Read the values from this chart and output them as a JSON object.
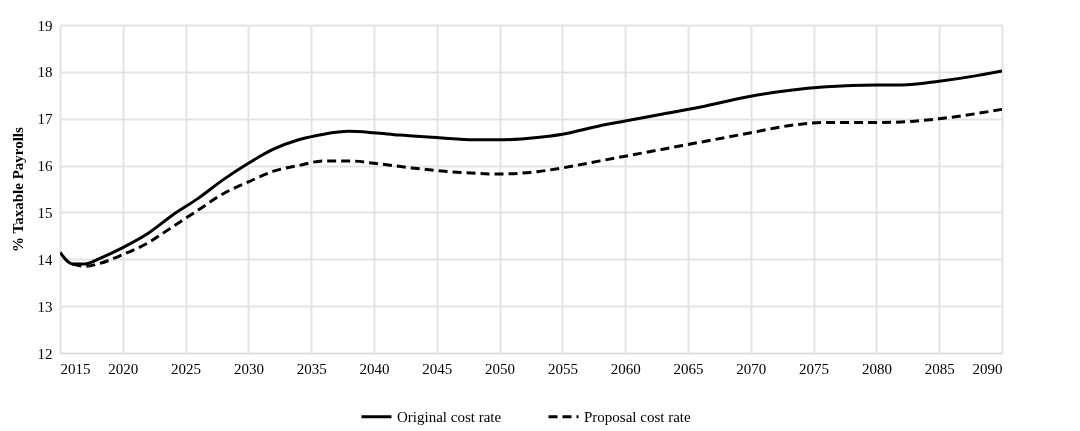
{
  "chart_data": {
    "type": "line",
    "ylabel": "% Taxable Payrolls",
    "xlim": [
      2015,
      2090
    ],
    "xticks": [
      2015,
      2020,
      2025,
      2030,
      2035,
      2040,
      2045,
      2050,
      2055,
      2060,
      2065,
      2070,
      2075,
      2080,
      2085,
      2090
    ],
    "ylim": [
      12,
      19
    ],
    "yticks": [
      12,
      13,
      14,
      15,
      16,
      17,
      18,
      19
    ],
    "grid": true,
    "legend": "bottom",
    "series": [
      {
        "name": "Original cost rate",
        "color": "#000000",
        "line_style": "solid",
        "x": [
          2015,
          2016,
          2017,
          2018,
          2020,
          2022,
          2024,
          2026,
          2028,
          2030,
          2032,
          2034,
          2036,
          2038,
          2040,
          2042,
          2045,
          2048,
          2050,
          2053,
          2055,
          2058,
          2060,
          2063,
          2066,
          2070,
          2073,
          2076,
          2080,
          2082,
          2085,
          2088,
          2090
        ],
        "values": [
          14.15,
          13.9,
          13.9,
          14.0,
          14.25,
          14.55,
          14.95,
          15.3,
          15.7,
          16.05,
          16.35,
          16.55,
          16.67,
          16.73,
          16.7,
          16.65,
          16.6,
          16.55,
          16.55,
          16.6,
          16.67,
          16.85,
          16.95,
          17.1,
          17.25,
          17.48,
          17.6,
          17.68,
          17.72,
          17.72,
          17.8,
          17.92,
          18.02
        ]
      },
      {
        "name": "Proposal cost rate",
        "color": "#000000",
        "line_style": "dashed",
        "x": [
          2016,
          2017,
          2018,
          2020,
          2022,
          2024,
          2026,
          2028,
          2030,
          2032,
          2034,
          2036,
          2038,
          2040,
          2043,
          2046,
          2050,
          2053,
          2055,
          2058,
          2060,
          2063,
          2066,
          2070,
          2073,
          2076,
          2080,
          2082,
          2085,
          2090
        ],
        "values": [
          13.9,
          13.85,
          13.9,
          14.1,
          14.35,
          14.7,
          15.05,
          15.4,
          15.65,
          15.88,
          16.0,
          16.1,
          16.1,
          16.05,
          15.95,
          15.87,
          15.82,
          15.87,
          15.95,
          16.1,
          16.2,
          16.35,
          16.5,
          16.7,
          16.85,
          16.92,
          16.92,
          16.93,
          17.0,
          17.2
        ]
      }
    ]
  }
}
